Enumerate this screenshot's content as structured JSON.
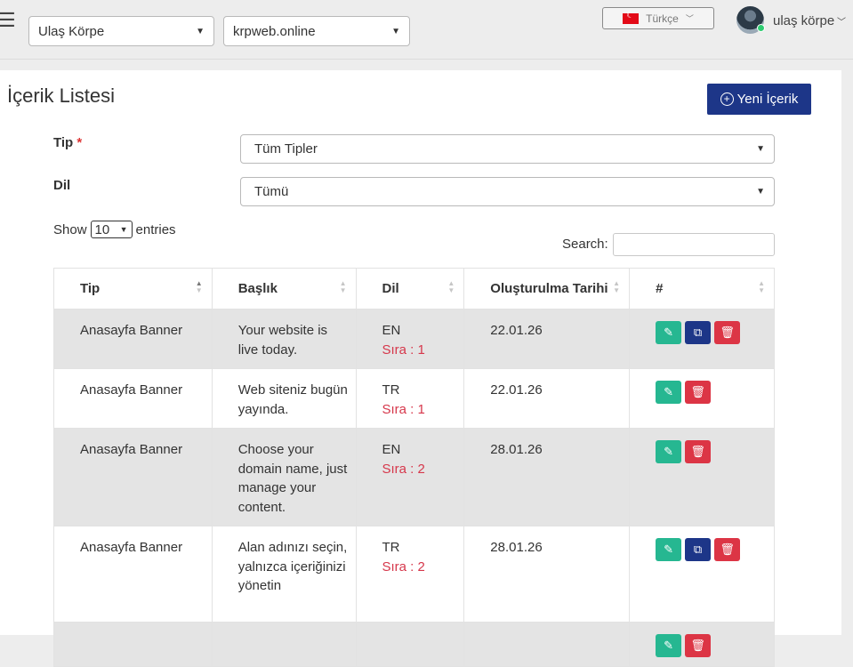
{
  "header": {
    "menu_icon": "hamburger-icon",
    "owner_select": "Ulaş Körpe",
    "site_select": "krpweb.online",
    "language": "Türkçe",
    "username": "ulaş körpe"
  },
  "page": {
    "title": "İçerik Listesi",
    "new_button": "Yeni İçerik"
  },
  "filters": {
    "type_label": "Tip",
    "type_required": "*",
    "type_value": "Tüm Tipler",
    "lang_label": "Dil",
    "lang_value": "Tümü"
  },
  "datatable": {
    "show_label": "Show",
    "entries_value": "10",
    "entries_label": "entries",
    "search_label": "Search:",
    "search_value": ""
  },
  "table": {
    "columns": [
      "Tip",
      "Başlık",
      "Dil",
      "Oluşturulma Tarihi",
      "#"
    ],
    "rows": [
      {
        "tip": "Anasayfa Banner",
        "baslik": "Your website is live today.",
        "dil": "EN",
        "sira": "Sıra : 1",
        "tarih": "22.01.26",
        "actions": [
          "edit",
          "copy",
          "delete"
        ]
      },
      {
        "tip": "Anasayfa Banner",
        "baslik": "Web siteniz bugün yayında.",
        "dil": "TR",
        "sira": "Sıra : 1",
        "tarih": "22.01.26",
        "actions": [
          "edit",
          "delete"
        ]
      },
      {
        "tip": "Anasayfa Banner",
        "baslik": "Choose your domain name, just manage your content.",
        "dil": "EN",
        "sira": "Sıra : 2",
        "tarih": "28.01.26",
        "actions": [
          "edit",
          "delete"
        ]
      },
      {
        "tip": "Anasayfa Banner",
        "baslik": "Alan adınızı seçin, yalnızca içeriğinizi yönetin",
        "dil": "TR",
        "sira": "Sıra : 2",
        "tarih": "28.01.26",
        "actions": [
          "edit",
          "copy",
          "delete"
        ]
      }
    ]
  },
  "colors": {
    "primary": "#1d3688",
    "success": "#26b791",
    "danger": "#dc3545",
    "sira_text": "#d6374b"
  }
}
